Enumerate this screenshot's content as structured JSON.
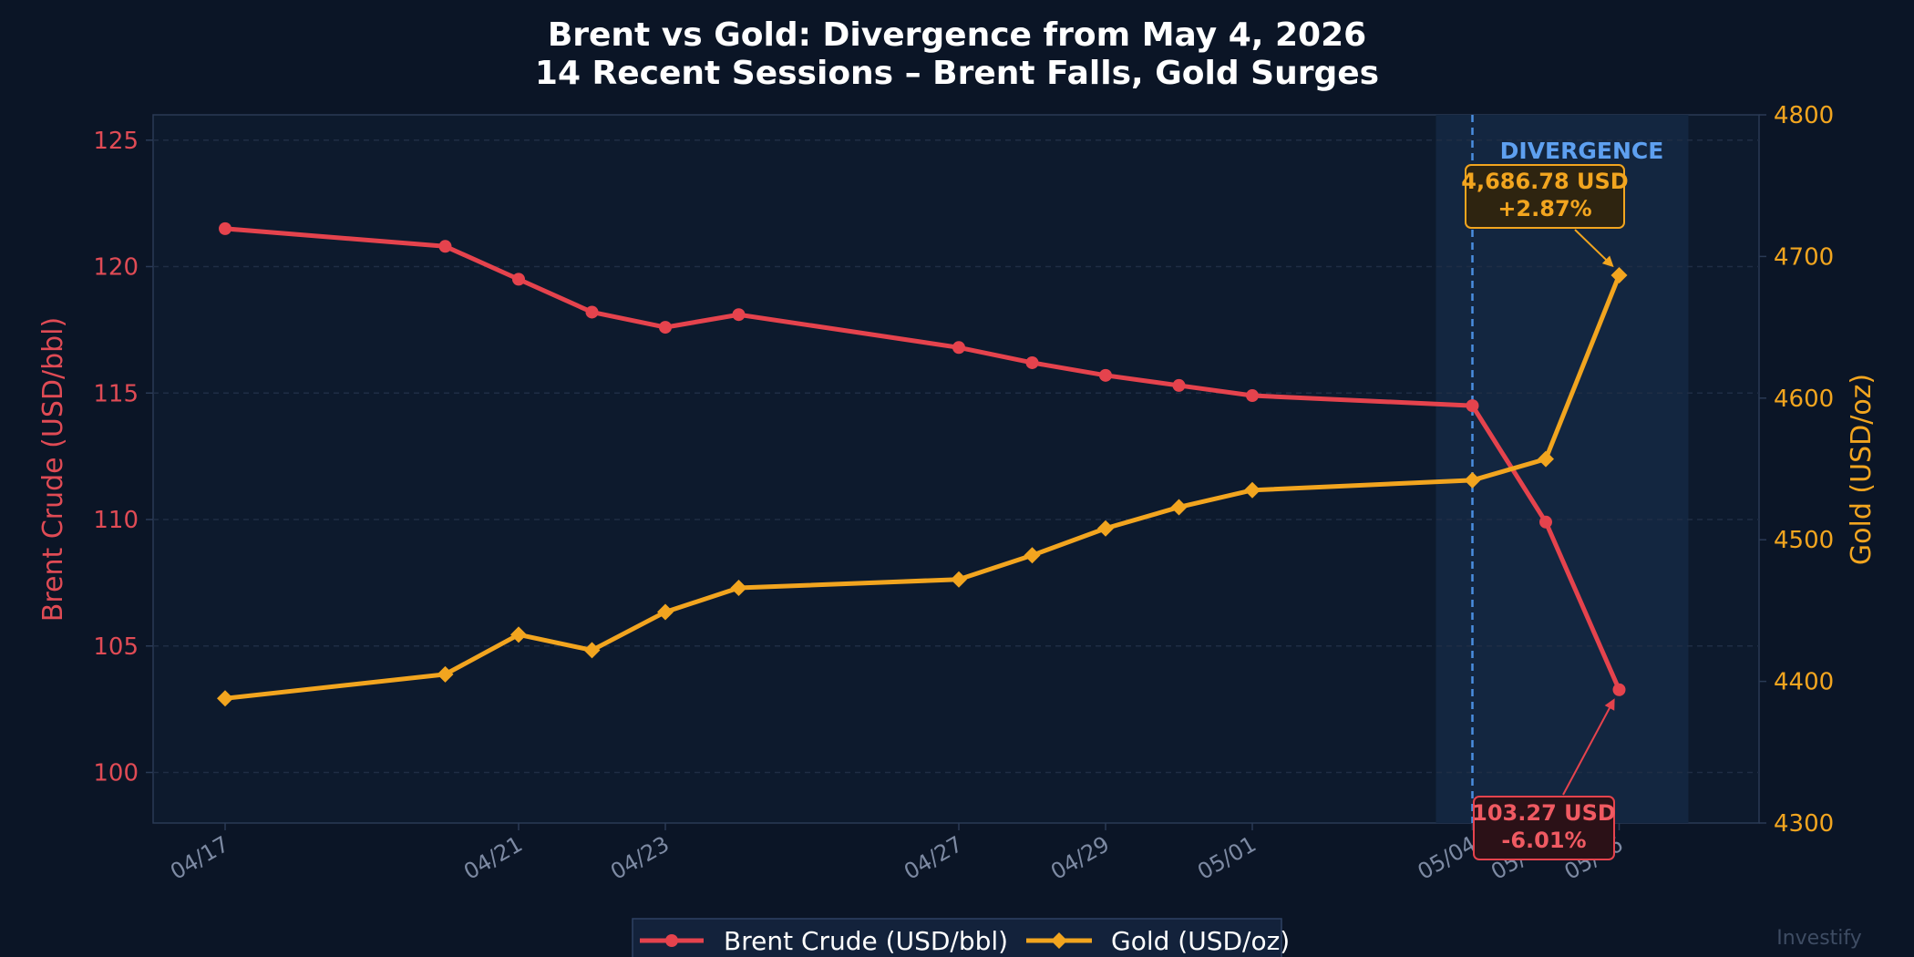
{
  "chart_data": {
    "type": "line",
    "title": "Brent vs Gold: Divergence from May 4, 2026",
    "subtitle": "14 Recent Sessions – Brent Falls, Gold Surges",
    "ylabel_left": "Brent Crude (USD/bbl)",
    "ylabel_right": "Gold (USD/oz)",
    "ylim_left": [
      98,
      126
    ],
    "ylim_right": [
      4300,
      4800
    ],
    "yticks_left": [
      "100",
      "105",
      "110",
      "115",
      "120",
      "125"
    ],
    "yticks_right": [
      "4300",
      "4400",
      "4500",
      "4600",
      "4700",
      "4800"
    ],
    "x": [
      "2026-04-17",
      "2026-04-20",
      "2026-04-21",
      "2026-04-22",
      "2026-04-23",
      "2026-04-24",
      "2026-04-27",
      "2026-04-28",
      "2026-04-29",
      "2026-04-30",
      "2026-05-01",
      "2026-05-04",
      "2026-05-05",
      "2026-05-06"
    ],
    "xtick_labels": [
      "04/17",
      "04/21",
      "04/23",
      "04/27",
      "04/29",
      "05/01",
      "05/04",
      "05/05",
      "05/06"
    ],
    "xtick_dates": [
      "2026-04-17",
      "2026-04-21",
      "2026-04-23",
      "2026-04-27",
      "2026-04-29",
      "2026-05-01",
      "2026-05-04",
      "2026-05-05",
      "2026-05-06"
    ],
    "series": [
      {
        "name": "Brent Crude (USD/bbl)",
        "axis": "left",
        "color": "#e5434d",
        "marker": "circle",
        "values": [
          121.5,
          120.8,
          119.5,
          118.2,
          117.6,
          118.1,
          116.8,
          116.2,
          115.7,
          115.3,
          114.9,
          114.5,
          109.9,
          103.27
        ]
      },
      {
        "name": "Gold (USD/oz)",
        "axis": "right",
        "color": "#f2a51f",
        "marker": "diamond",
        "values": [
          4388,
          4405,
          4433,
          4422,
          4449,
          4466,
          4472,
          4489,
          4508,
          4523,
          4535,
          4542,
          4557,
          4686.78
        ]
      }
    ],
    "divergence_label": "DIVERGENCE",
    "divergence_start": "2026-05-04",
    "annotations": {
      "gold": {
        "line1": "4,686.78 USD",
        "line2": "+2.87%"
      },
      "brent": {
        "line1": "103.27 USD",
        "line2": "-6.01%"
      }
    },
    "grid": true,
    "legend": "bottom-center"
  },
  "watermark": "Investify"
}
